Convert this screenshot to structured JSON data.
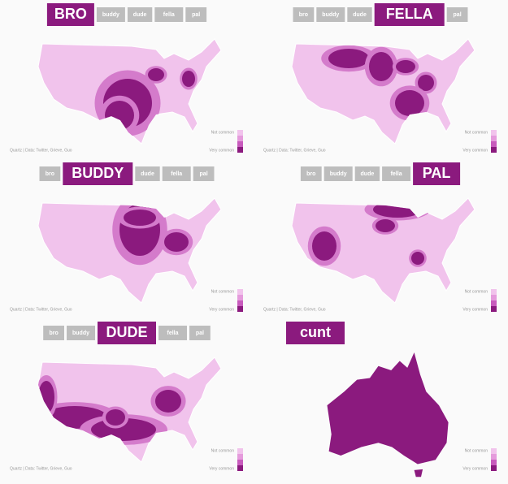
{
  "panels": [
    {
      "tabs": [
        "BRO",
        "buddy",
        "dude",
        "fella",
        "pal"
      ],
      "active": 0,
      "legend": [
        "Not common",
        "Very common"
      ],
      "source": "Quartz | Data: Twitter, Grieve, Guo"
    },
    {
      "tabs": [
        "bro",
        "buddy",
        "dude",
        "FELLA",
        "pal"
      ],
      "active": 3,
      "legend": [
        "Not common",
        "Very common"
      ],
      "source": "Quartz | Data: Twitter, Grieve, Guo"
    },
    {
      "tabs": [
        "bro",
        "BUDDY",
        "dude",
        "fella",
        "pal"
      ],
      "active": 1,
      "legend": [
        "Not common",
        "Very common"
      ],
      "source": "Quartz | Data: Twitter, Grieve, Guo"
    },
    {
      "tabs": [
        "bro",
        "buddy",
        "dude",
        "fella",
        "PAL"
      ],
      "active": 4,
      "legend": [
        "Not common",
        "Very common"
      ],
      "source": "Quartz | Data: Twitter, Grieve, Guo"
    },
    {
      "tabs": [
        "bro",
        "buddy",
        "DUDE",
        "fella",
        "pal"
      ],
      "active": 2,
      "legend": [
        "Not common",
        "Very common"
      ],
      "source": "Quartz | Data: Twitter, Grieve, Guo"
    },
    {
      "tabs": [
        "cunt"
      ],
      "active": 0,
      "legend": [
        "Not common",
        "Very common"
      ]
    }
  ]
}
